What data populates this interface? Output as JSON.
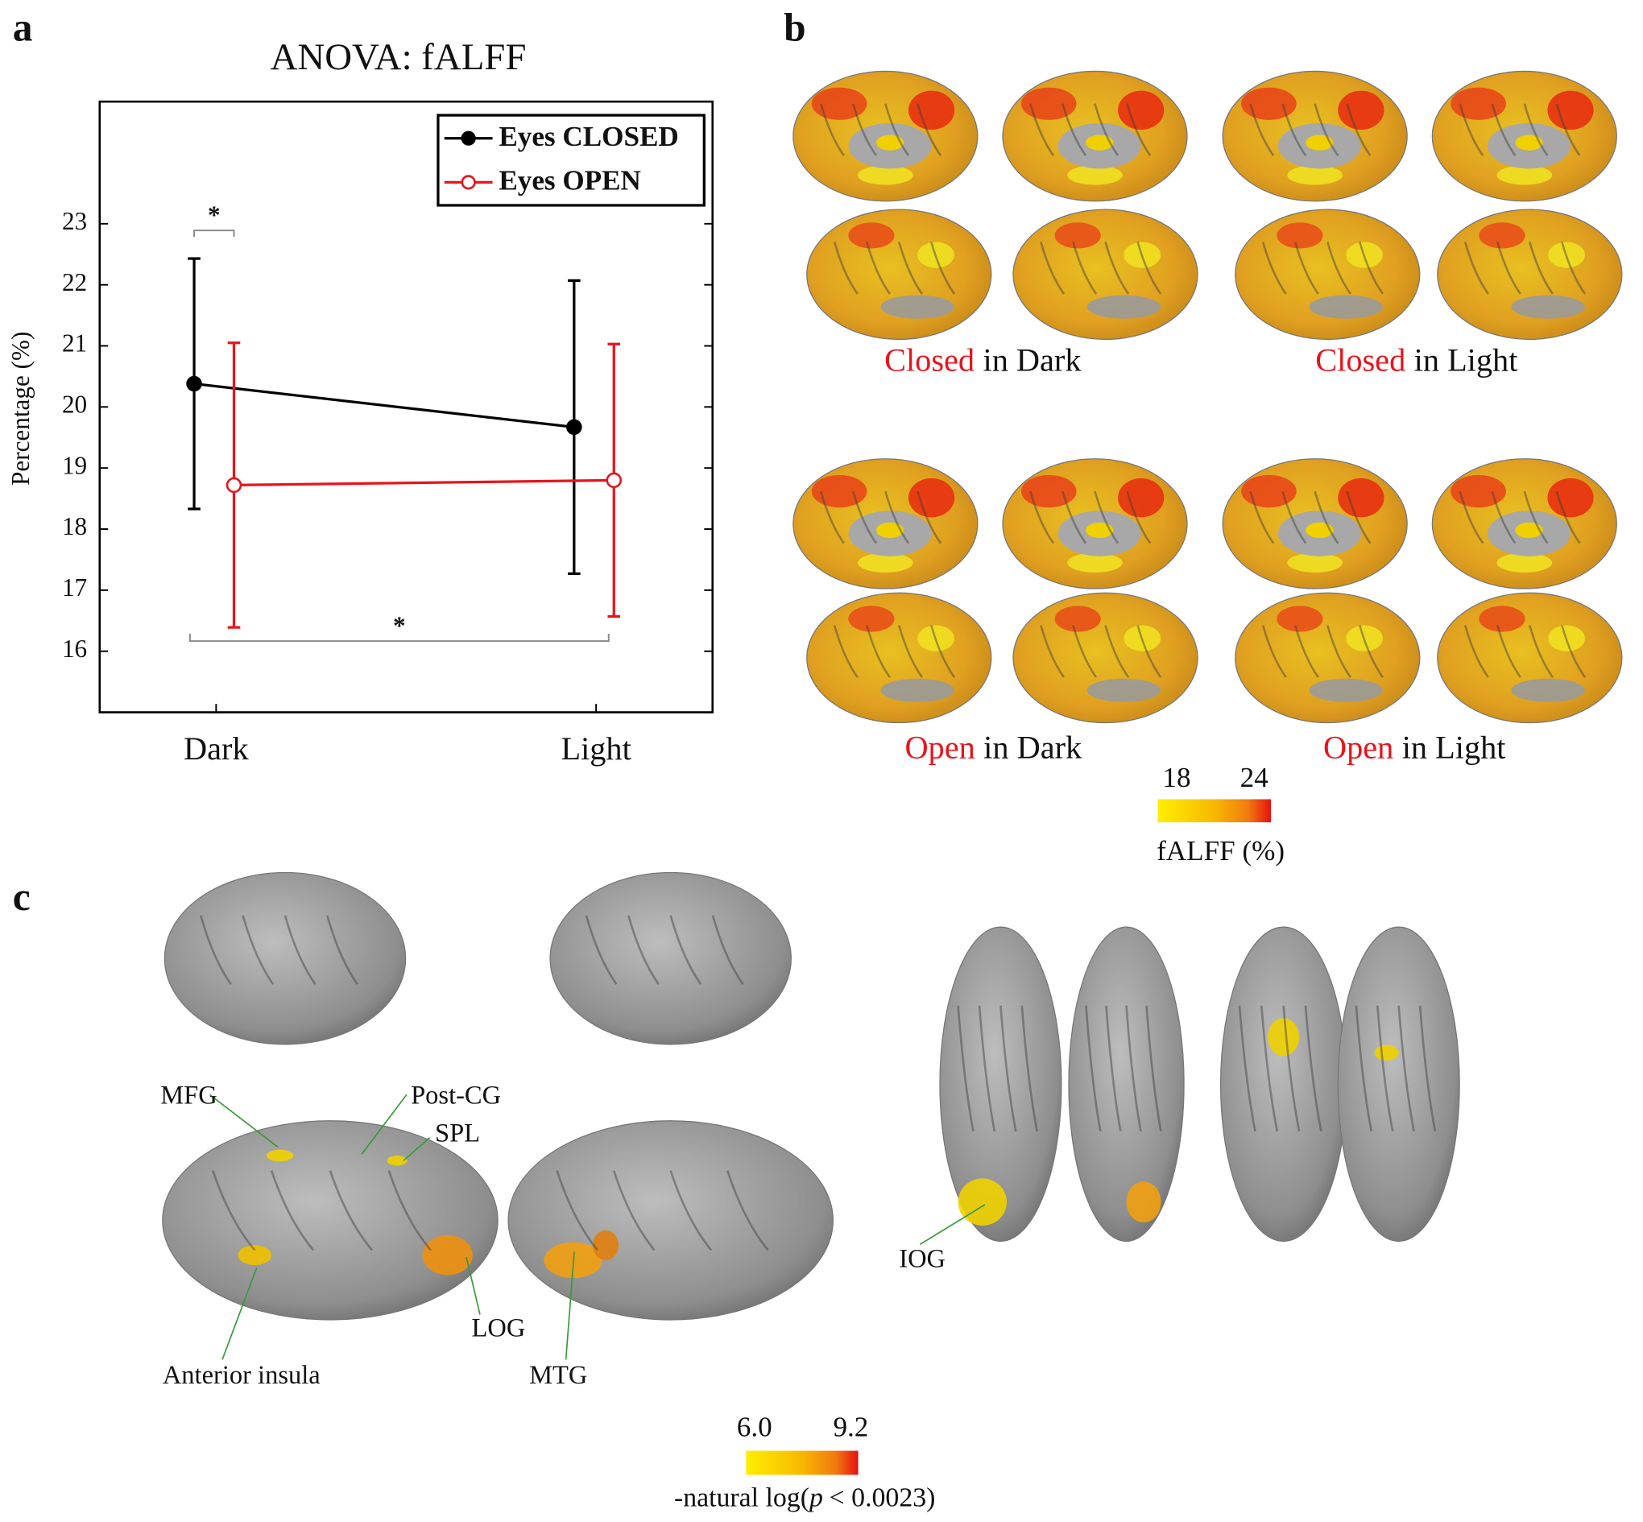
{
  "chart_data": {
    "type": "line",
    "title": "ANOVA: fALFF",
    "ylabel": "Percentage (%)",
    "categories": [
      "Dark",
      "Light"
    ],
    "series": [
      {
        "name": "Eyes CLOSED",
        "color": "#000000",
        "marker": "filled",
        "values": [
          20.38,
          19.67
        ],
        "errors": [
          2.05,
          2.4
        ]
      },
      {
        "name": "Eyes OPEN",
        "color": "#e8141c",
        "marker": "open",
        "values": [
          18.72,
          18.8
        ],
        "errors": [
          2.33,
          2.23
        ]
      }
    ],
    "ylim": [
      15,
      25
    ],
    "yticks": [
      16,
      17,
      18,
      19,
      20,
      21,
      22,
      23
    ],
    "legend": "upper right",
    "annotations": [
      {
        "text": "*"
      },
      {
        "text": "*"
      }
    ]
  },
  "panels": {
    "a": "a",
    "b": "b",
    "c": "c"
  },
  "panel_b": {
    "maps": [
      {
        "condition": "Closed",
        "context": "in Dark"
      },
      {
        "condition": "Closed",
        "context": "in Light"
      },
      {
        "condition": "Open",
        "context": "in Dark"
      },
      {
        "condition": "Open",
        "context": "in Light"
      }
    ],
    "colorbar": {
      "low": "18",
      "high": "24",
      "label": "fALFF (%)"
    }
  },
  "panel_c": {
    "regions": [
      "MFG",
      "Post-CG",
      "SPL",
      "Anterior insula",
      "LOG",
      "MTG",
      "IOG"
    ],
    "colorbar": {
      "low": "6.0",
      "high": "9.2",
      "label": {
        "prefix": "-natural log(",
        "italic": "p",
        "suffix": "< 0.0023)"
      }
    }
  }
}
